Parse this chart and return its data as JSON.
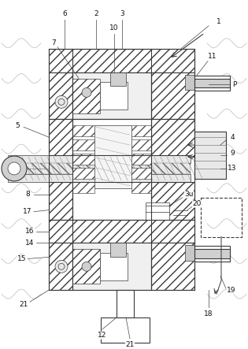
{
  "bg_color": "#ffffff",
  "lc": "#2a2a2a",
  "hc": "#3a3a3a",
  "label_fs": 6.5,
  "fig_w": 3.15,
  "fig_h": 4.43,
  "dpi": 100,
  "wavy_color": "#bbbbbb",
  "gray_fill": "#c8c8c8",
  "light_fill": "#e8e8e8",
  "mid_fill": "#d0d0d0"
}
